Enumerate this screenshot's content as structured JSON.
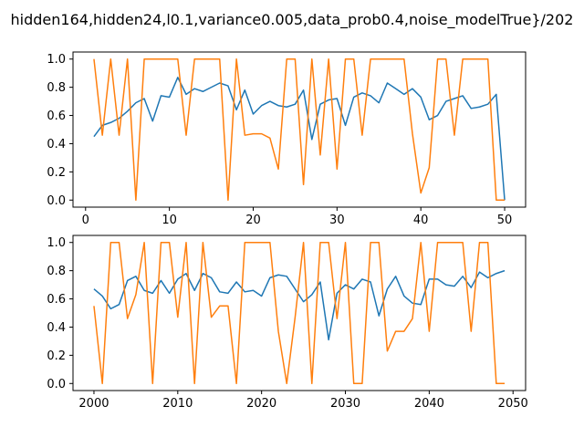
{
  "figure": {
    "suptitle": "hidden164,hidden24,l0.1,variance0.005,data_prob0.4,noise_modelTrue}/202"
  },
  "colors": {
    "series_blue": "#1f77b4",
    "series_orange": "#ff7f0e"
  },
  "chart_data": [
    {
      "type": "line",
      "x": [
        1,
        2,
        3,
        4,
        5,
        6,
        7,
        8,
        9,
        10,
        11,
        12,
        13,
        14,
        15,
        16,
        17,
        18,
        19,
        20,
        21,
        22,
        23,
        24,
        25,
        26,
        27,
        28,
        29,
        30,
        31,
        32,
        33,
        34,
        35,
        36,
        37,
        38,
        39,
        40,
        41,
        42,
        43,
        44,
        45,
        46,
        47,
        48,
        49,
        50
      ],
      "xlim": [
        -1.5,
        52.5
      ],
      "ylim": [
        -0.05,
        1.05
      ],
      "xticks": [
        0,
        10,
        20,
        30,
        40,
        50
      ],
      "xtick_labels": [
        "0",
        "10",
        "20",
        "30",
        "40",
        "50"
      ],
      "yticks": [
        0.0,
        0.2,
        0.4,
        0.6,
        0.8,
        1.0
      ],
      "ytick_labels": [
        "0.0",
        "0.2",
        "0.4",
        "0.6",
        "0.8",
        "1.0"
      ],
      "grid": false,
      "series": [
        {
          "color": "#1f77b4",
          "values": [
            0.45,
            0.53,
            0.55,
            0.58,
            0.63,
            0.69,
            0.72,
            0.56,
            0.74,
            0.73,
            0.87,
            0.75,
            0.79,
            0.77,
            0.8,
            0.83,
            0.81,
            0.64,
            0.78,
            0.61,
            0.67,
            0.7,
            0.67,
            0.66,
            0.68,
            0.78,
            0.43,
            0.68,
            0.71,
            0.72,
            0.53,
            0.73,
            0.76,
            0.74,
            0.69,
            0.83,
            0.79,
            0.75,
            0.79,
            0.73,
            0.57,
            0.6,
            0.7,
            0.72,
            0.74,
            0.65,
            0.66,
            0.68,
            0.75,
            0.0
          ]
        },
        {
          "color": "#ff7f0e",
          "values": [
            1.0,
            0.46,
            1.0,
            0.46,
            1.0,
            0.0,
            1.0,
            1.0,
            1.0,
            1.0,
            1.0,
            0.46,
            1.0,
            1.0,
            1.0,
            1.0,
            0.0,
            1.0,
            0.46,
            0.47,
            0.47,
            0.44,
            0.22,
            1.0,
            1.0,
            0.11,
            1.0,
            0.32,
            1.0,
            0.22,
            1.0,
            1.0,
            0.46,
            1.0,
            1.0,
            1.0,
            1.0,
            1.0,
            0.47,
            0.05,
            0.23,
            1.0,
            1.0,
            0.46,
            1.0,
            1.0,
            1.0,
            1.0,
            0.0,
            0.0
          ]
        }
      ]
    },
    {
      "type": "line",
      "x": [
        2000,
        2001,
        2002,
        2003,
        2004,
        2005,
        2006,
        2007,
        2008,
        2009,
        2010,
        2011,
        2012,
        2013,
        2014,
        2015,
        2016,
        2017,
        2018,
        2019,
        2020,
        2021,
        2022,
        2023,
        2024,
        2025,
        2026,
        2027,
        2028,
        2029,
        2030,
        2031,
        2032,
        2033,
        2034,
        2035,
        2036,
        2037,
        2038,
        2039,
        2040,
        2041,
        2042,
        2043,
        2044,
        2045,
        2046,
        2047,
        2048,
        2049
      ],
      "xlim": [
        1997.5,
        2051.5
      ],
      "ylim": [
        -0.05,
        1.05
      ],
      "xticks": [
        2000,
        2010,
        2020,
        2030,
        2040,
        2050
      ],
      "xtick_labels": [
        "2000",
        "2010",
        "2020",
        "2030",
        "2040",
        "2050"
      ],
      "yticks": [
        0.0,
        0.2,
        0.4,
        0.6,
        0.8,
        1.0
      ],
      "ytick_labels": [
        "0.0",
        "0.2",
        "0.4",
        "0.6",
        "0.8",
        "1.0"
      ],
      "grid": false,
      "series": [
        {
          "color": "#1f77b4",
          "values": [
            0.67,
            0.62,
            0.53,
            0.56,
            0.73,
            0.76,
            0.66,
            0.64,
            0.73,
            0.64,
            0.74,
            0.78,
            0.66,
            0.78,
            0.75,
            0.65,
            0.64,
            0.72,
            0.65,
            0.66,
            0.62,
            0.75,
            0.77,
            0.76,
            0.67,
            0.58,
            0.63,
            0.72,
            0.31,
            0.64,
            0.7,
            0.67,
            0.74,
            0.72,
            0.48,
            0.67,
            0.76,
            0.62,
            0.57,
            0.56,
            0.74,
            0.74,
            0.7,
            0.69,
            0.76,
            0.68,
            0.79,
            0.75,
            0.78,
            0.8
          ]
        },
        {
          "color": "#ff7f0e",
          "values": [
            0.55,
            0.0,
            1.0,
            1.0,
            0.46,
            0.63,
            1.0,
            0.0,
            1.0,
            1.0,
            0.47,
            1.0,
            0.0,
            1.0,
            0.47,
            0.55,
            0.55,
            0.0,
            1.0,
            1.0,
            1.0,
            1.0,
            0.37,
            0.0,
            0.47,
            1.0,
            0.0,
            1.0,
            1.0,
            0.46,
            1.0,
            0.0,
            0.0,
            1.0,
            1.0,
            0.23,
            0.37,
            0.37,
            0.46,
            1.0,
            0.37,
            1.0,
            1.0,
            1.0,
            1.0,
            0.37,
            1.0,
            1.0,
            0.0,
            0.0
          ]
        }
      ]
    }
  ]
}
